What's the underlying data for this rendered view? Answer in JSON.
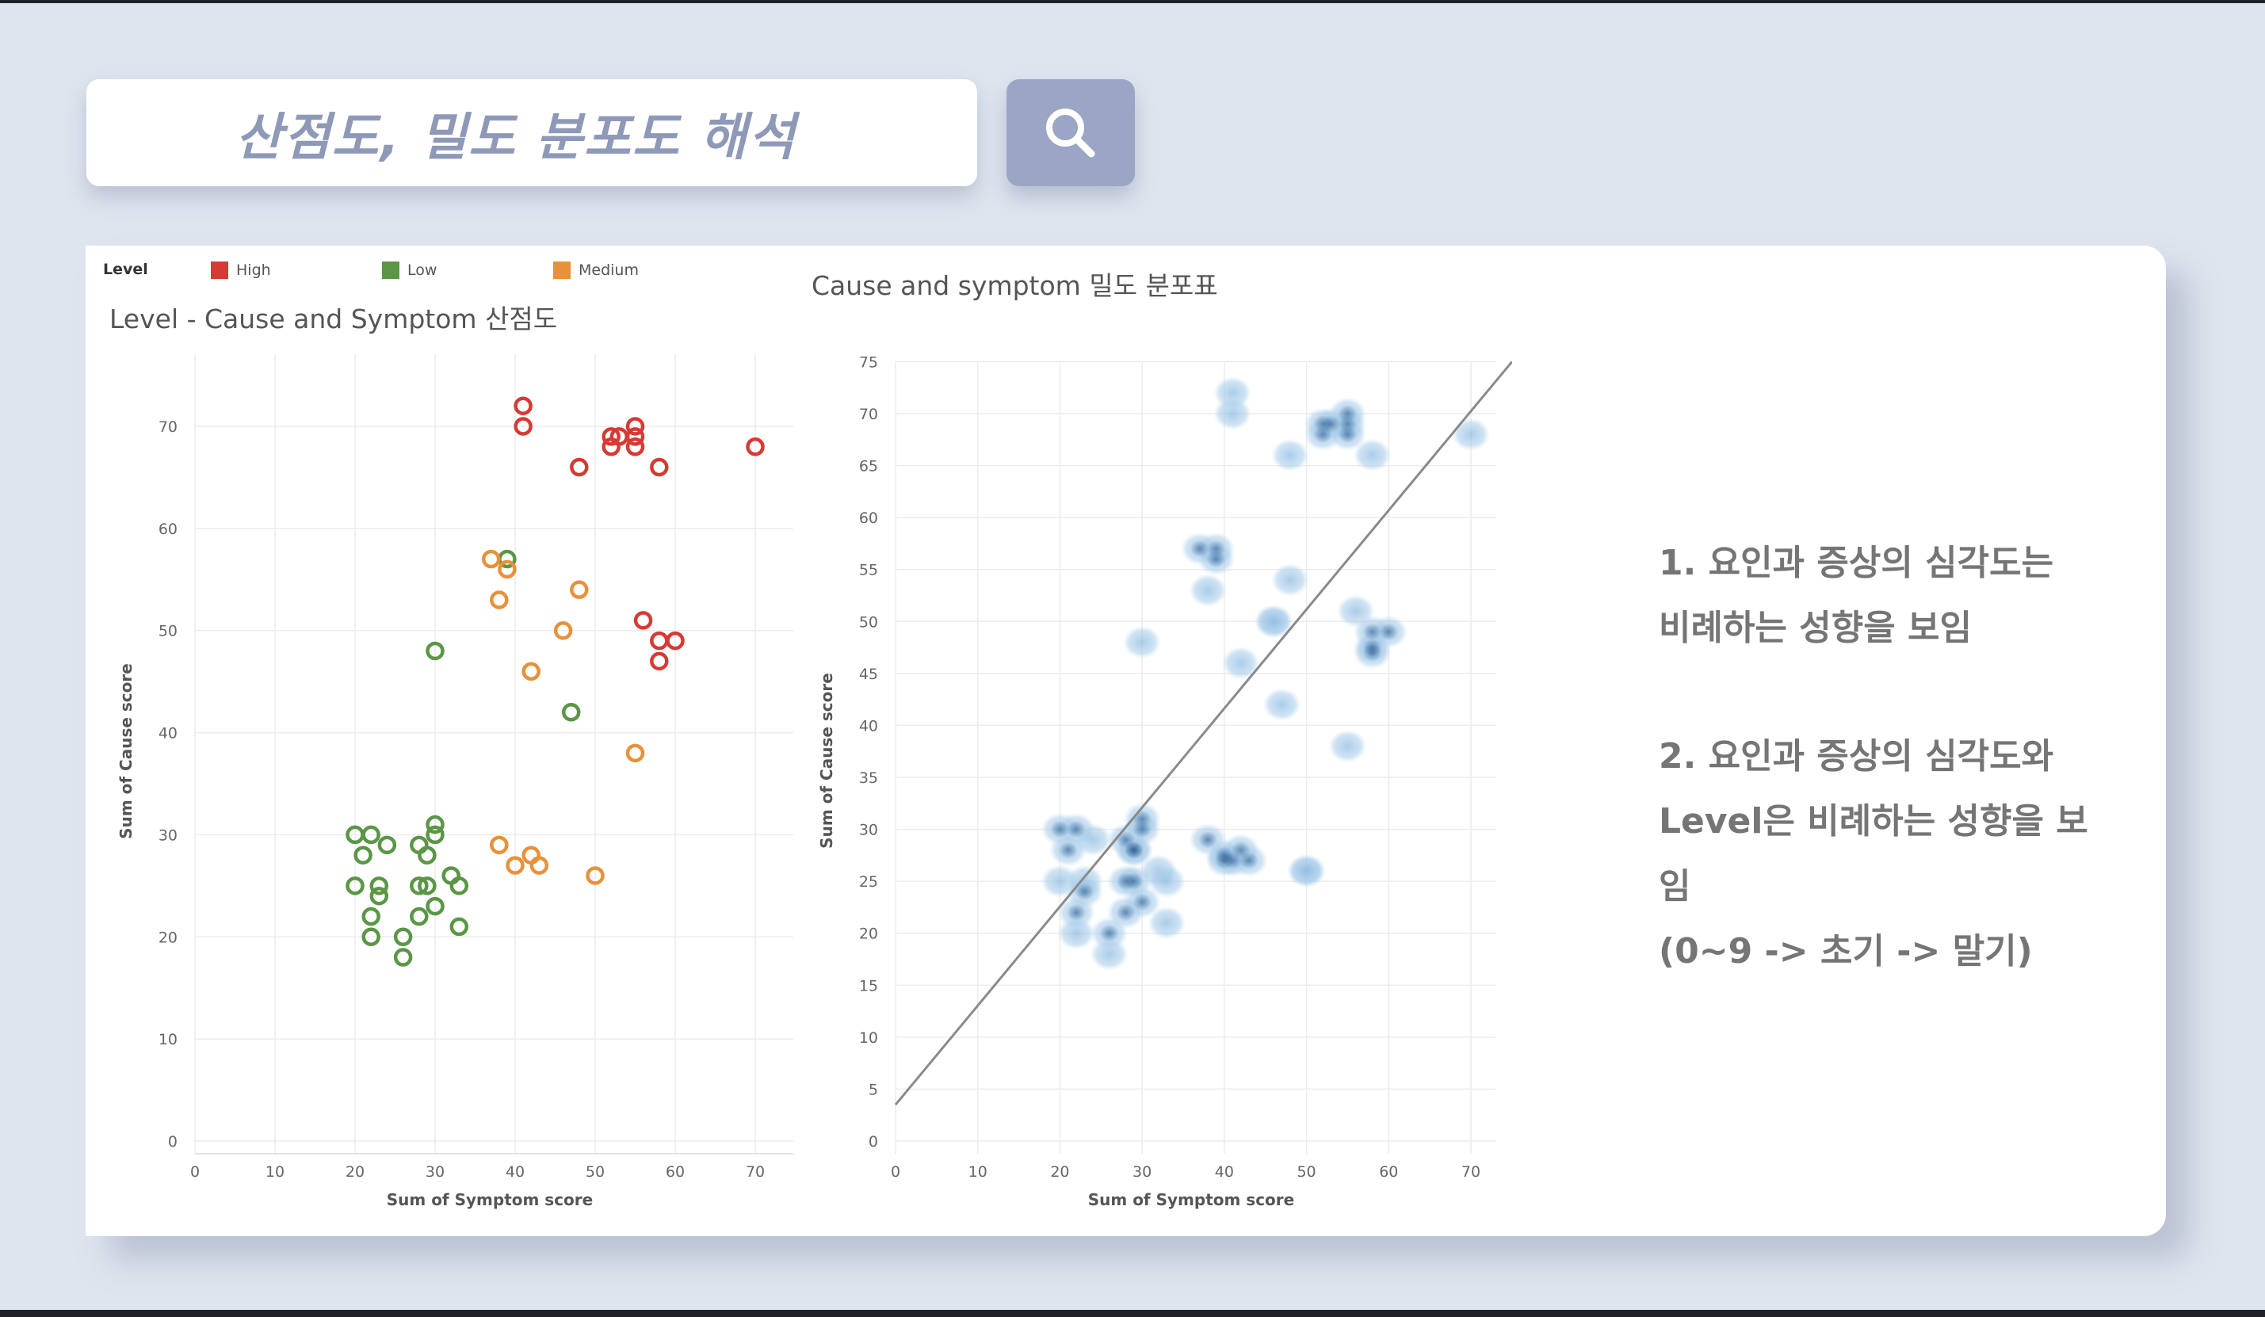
{
  "search": {
    "query": "산점도, 밀도 분포도 해석"
  },
  "icons": {
    "search_button": "search-icon"
  },
  "colors": {
    "high": "#d63a35",
    "low": "#5a9646",
    "medium": "#e8913a",
    "density": "#7fb0dc",
    "density_dark": "#1c4e84"
  },
  "legend": {
    "title": "Level",
    "items": [
      {
        "label": "High",
        "color": "#d63a35"
      },
      {
        "label": "Low",
        "color": "#5a9646"
      },
      {
        "label": "Medium",
        "color": "#e8913a"
      }
    ]
  },
  "notes": {
    "note1_line1": "1. 요인과 증상의 심각도는",
    "note1_line2": "비례하는 성향을 보임",
    "note2_line1": "2. 요인과 증상의 심각도와",
    "note2_line2": "Level은 비례하는 성향을 보",
    "note2_line3": "임",
    "note2_line4": "(0~9 -> 초기 -> 말기)"
  },
  "chart_data": [
    {
      "type": "scatter",
      "title": "Level - Cause and Symptom 산점도",
      "xlabel": "Sum of Symptom score",
      "ylabel": "Sum of Cause score",
      "xlim": [
        0,
        75
      ],
      "ylim": [
        0,
        75
      ],
      "xticks": [
        0,
        10,
        20,
        30,
        40,
        50,
        60,
        70
      ],
      "yticks": [
        0,
        10,
        20,
        30,
        40,
        50,
        60,
        70
      ],
      "grid": true,
      "legend": "top",
      "series": [
        {
          "name": "High",
          "color": "#d63a35",
          "points": [
            [
              41,
              72
            ],
            [
              41,
              70
            ],
            [
              48,
              66
            ],
            [
              52,
              69
            ],
            [
              52,
              68
            ],
            [
              53,
              69
            ],
            [
              55,
              70
            ],
            [
              55,
              69
            ],
            [
              55,
              68
            ],
            [
              58,
              66
            ],
            [
              70,
              68
            ],
            [
              56,
              51
            ],
            [
              58,
              49
            ],
            [
              60,
              49
            ],
            [
              58,
              47
            ]
          ]
        },
        {
          "name": "Low",
          "color": "#5a9646",
          "points": [
            [
              20,
              30
            ],
            [
              22,
              30
            ],
            [
              24,
              29
            ],
            [
              21,
              28
            ],
            [
              28,
              29
            ],
            [
              29,
              28
            ],
            [
              30,
              31
            ],
            [
              30,
              30
            ],
            [
              20,
              25
            ],
            [
              23,
              25
            ],
            [
              23,
              24
            ],
            [
              28,
              25
            ],
            [
              29,
              25
            ],
            [
              32,
              26
            ],
            [
              33,
              25
            ],
            [
              30,
              23
            ],
            [
              22,
              22
            ],
            [
              28,
              22
            ],
            [
              33,
              21
            ],
            [
              22,
              20
            ],
            [
              26,
              20
            ],
            [
              26,
              18
            ],
            [
              30,
              48
            ],
            [
              47,
              42
            ],
            [
              39,
              57
            ]
          ]
        },
        {
          "name": "Medium",
          "color": "#e8913a",
          "points": [
            [
              37,
              57
            ],
            [
              39,
              56
            ],
            [
              48,
              54
            ],
            [
              38,
              53
            ],
            [
              46,
              50
            ],
            [
              42,
              46
            ],
            [
              55,
              38
            ],
            [
              38,
              29
            ],
            [
              42,
              28
            ],
            [
              40,
              27
            ],
            [
              43,
              27
            ],
            [
              50,
              26
            ]
          ]
        }
      ]
    },
    {
      "type": "scatter",
      "title": "Cause and symptom 밀도 분포표",
      "xlabel": "Sum of Symptom score",
      "ylabel": "Sum of Cause score",
      "xlim": [
        0,
        75
      ],
      "ylim": [
        0,
        75
      ],
      "xticks": [
        0,
        10,
        20,
        30,
        40,
        50,
        60,
        70
      ],
      "yticks": [
        0,
        5,
        10,
        15,
        20,
        25,
        30,
        35,
        40,
        45,
        50,
        55,
        60,
        65,
        70,
        75
      ],
      "grid": true,
      "trend_line": {
        "x": [
          0,
          75
        ],
        "y": [
          3.5,
          75
        ]
      },
      "points": [
        [
          41,
          72
        ],
        [
          41,
          70
        ],
        [
          48,
          66
        ],
        [
          52,
          69
        ],
        [
          52,
          68
        ],
        [
          53,
          69
        ],
        [
          55,
          70
        ],
        [
          55,
          69
        ],
        [
          55,
          68
        ],
        [
          58,
          66
        ],
        [
          70,
          68
        ],
        [
          56,
          51
        ],
        [
          58,
          49
        ],
        [
          60,
          49
        ],
        [
          58,
          47
        ],
        [
          58,
          47.5
        ],
        [
          20,
          30
        ],
        [
          22,
          30
        ],
        [
          24,
          29
        ],
        [
          21,
          28
        ],
        [
          28,
          29
        ],
        [
          29,
          28
        ],
        [
          30,
          31
        ],
        [
          30,
          30
        ],
        [
          20,
          25
        ],
        [
          23,
          25
        ],
        [
          23,
          24
        ],
        [
          28,
          25
        ],
        [
          29,
          25
        ],
        [
          32,
          26
        ],
        [
          33,
          25
        ],
        [
          30,
          23
        ],
        [
          22,
          22
        ],
        [
          28,
          22
        ],
        [
          33,
          21
        ],
        [
          22,
          20
        ],
        [
          26,
          20
        ],
        [
          26,
          18
        ],
        [
          30,
          48
        ],
        [
          47,
          42
        ],
        [
          39,
          57
        ],
        [
          37,
          57
        ],
        [
          39,
          56
        ],
        [
          48,
          54
        ],
        [
          38,
          53
        ],
        [
          46,
          50
        ],
        [
          46,
          50
        ],
        [
          42,
          46
        ],
        [
          55,
          38
        ],
        [
          38,
          29
        ],
        [
          42,
          28
        ],
        [
          40,
          27
        ],
        [
          43,
          27
        ],
        [
          41,
          27
        ],
        [
          50,
          26
        ],
        [
          50,
          26
        ],
        [
          29,
          28
        ],
        [
          40,
          27.5
        ]
      ]
    }
  ]
}
